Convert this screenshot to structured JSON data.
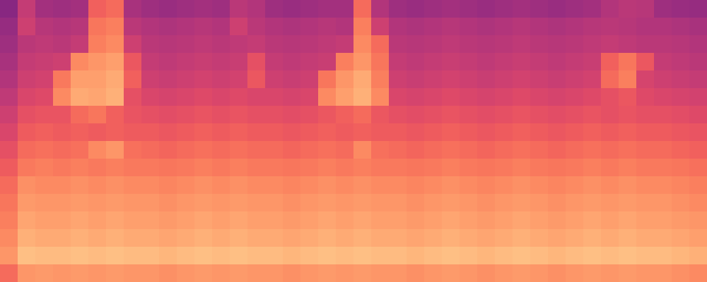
{
  "chart_data": {
    "type": "heatmap",
    "tick_labels": false,
    "zlim": [
      0,
      90
    ],
    "cells": [
      [
        35,
        48,
        41,
        40,
        41,
        60,
        62,
        42,
        40,
        39,
        40,
        41,
        40,
        46,
        44,
        40,
        39,
        40,
        41,
        41,
        62,
        44,
        40,
        39,
        40,
        41,
        40,
        39,
        40,
        41,
        40,
        39,
        40,
        41,
        44,
        46,
        45,
        40,
        39,
        38
      ],
      [
        38,
        50,
        45,
        44,
        45,
        64,
        66,
        46,
        44,
        43,
        44,
        45,
        44,
        50,
        46,
        44,
        43,
        44,
        45,
        44,
        66,
        50,
        44,
        43,
        44,
        45,
        44,
        43,
        44,
        45,
        44,
        43,
        44,
        45,
        46,
        45,
        44,
        44,
        43,
        42
      ],
      [
        40,
        46,
        47,
        46,
        48,
        66,
        68,
        50,
        46,
        45,
        46,
        47,
        46,
        47,
        48,
        46,
        45,
        46,
        47,
        48,
        68,
        62,
        46,
        45,
        46,
        47,
        46,
        45,
        46,
        47,
        46,
        45,
        46,
        47,
        48,
        47,
        46,
        46,
        45,
        44
      ],
      [
        42,
        48,
        49,
        50,
        68,
        70,
        72,
        58,
        48,
        47,
        48,
        49,
        48,
        49,
        56,
        48,
        47,
        48,
        49,
        66,
        70,
        64,
        48,
        47,
        48,
        49,
        48,
        47,
        48,
        49,
        48,
        47,
        48,
        49,
        60,
        64,
        58,
        48,
        47,
        46
      ],
      [
        44,
        50,
        51,
        65,
        72,
        72,
        74,
        60,
        50,
        49,
        50,
        51,
        50,
        51,
        58,
        50,
        49,
        50,
        64,
        70,
        74,
        66,
        50,
        49,
        50,
        51,
        50,
        49,
        50,
        51,
        50,
        49,
        50,
        51,
        62,
        66,
        52,
        50,
        49,
        48
      ],
      [
        47,
        53,
        54,
        68,
        74,
        73,
        75,
        56,
        53,
        52,
        53,
        54,
        53,
        54,
        53,
        53,
        52,
        53,
        68,
        72,
        75,
        68,
        53,
        52,
        53,
        54,
        53,
        52,
        53,
        54,
        53,
        52,
        53,
        54,
        56,
        58,
        54,
        53,
        52,
        51
      ],
      [
        50,
        56,
        57,
        57,
        62,
        64,
        60,
        57,
        56,
        55,
        56,
        57,
        56,
        57,
        56,
        56,
        55,
        56,
        58,
        60,
        62,
        58,
        56,
        55,
        56,
        57,
        56,
        55,
        56,
        57,
        56,
        55,
        56,
        57,
        56,
        57,
        56,
        56,
        55,
        54
      ],
      [
        53,
        59,
        60,
        59,
        60,
        59,
        60,
        59,
        59,
        58,
        59,
        60,
        59,
        60,
        59,
        59,
        58,
        59,
        60,
        59,
        60,
        59,
        59,
        58,
        59,
        60,
        59,
        58,
        59,
        60,
        59,
        58,
        59,
        60,
        59,
        60,
        59,
        59,
        58,
        57
      ],
      [
        56,
        62,
        63,
        62,
        63,
        68,
        70,
        63,
        62,
        61,
        62,
        63,
        62,
        63,
        62,
        62,
        61,
        62,
        63,
        62,
        68,
        63,
        62,
        61,
        62,
        63,
        62,
        61,
        62,
        63,
        62,
        61,
        62,
        63,
        62,
        63,
        62,
        62,
        61,
        60
      ],
      [
        59,
        65,
        66,
        65,
        66,
        65,
        66,
        65,
        65,
        64,
        65,
        66,
        65,
        66,
        65,
        65,
        64,
        65,
        66,
        65,
        66,
        65,
        65,
        64,
        65,
        66,
        65,
        64,
        65,
        66,
        65,
        64,
        65,
        66,
        65,
        66,
        65,
        65,
        64,
        63
      ],
      [
        62,
        69,
        68,
        68,
        69,
        68,
        69,
        68,
        68,
        67,
        68,
        69,
        68,
        69,
        68,
        68,
        67,
        68,
        69,
        68,
        69,
        68,
        68,
        67,
        68,
        69,
        68,
        67,
        68,
        69,
        68,
        67,
        68,
        69,
        68,
        69,
        68,
        68,
        67,
        66
      ],
      [
        64,
        71,
        70,
        70,
        71,
        70,
        71,
        70,
        70,
        69,
        70,
        71,
        70,
        71,
        70,
        70,
        69,
        70,
        71,
        70,
        71,
        70,
        70,
        69,
        70,
        71,
        70,
        69,
        70,
        71,
        70,
        69,
        70,
        71,
        70,
        71,
        70,
        70,
        69,
        68
      ],
      [
        66,
        73,
        72,
        72,
        73,
        72,
        73,
        72,
        72,
        71,
        72,
        73,
        72,
        73,
        72,
        72,
        71,
        72,
        73,
        72,
        73,
        72,
        72,
        71,
        72,
        73,
        72,
        71,
        72,
        73,
        72,
        71,
        72,
        73,
        72,
        73,
        72,
        72,
        71,
        70
      ],
      [
        68,
        75,
        74,
        74,
        75,
        74,
        75,
        74,
        74,
        73,
        74,
        75,
        74,
        75,
        74,
        74,
        73,
        74,
        75,
        74,
        75,
        74,
        74,
        73,
        74,
        75,
        74,
        73,
        74,
        75,
        74,
        73,
        74,
        75,
        74,
        75,
        74,
        74,
        73,
        72
      ],
      [
        70,
        78,
        77,
        77,
        78,
        77,
        78,
        77,
        77,
        76,
        77,
        78,
        77,
        78,
        77,
        77,
        76,
        77,
        78,
        77,
        78,
        77,
        77,
        76,
        77,
        78,
        77,
        76,
        77,
        78,
        77,
        76,
        77,
        78,
        77,
        78,
        77,
        77,
        76,
        75
      ],
      [
        62,
        70,
        71,
        70,
        71,
        70,
        71,
        70,
        70,
        69,
        70,
        71,
        70,
        71,
        70,
        70,
        69,
        70,
        71,
        70,
        71,
        70,
        70,
        69,
        70,
        71,
        70,
        69,
        70,
        71,
        70,
        69,
        70,
        71,
        70,
        71,
        70,
        70,
        69,
        68
      ]
    ]
  }
}
